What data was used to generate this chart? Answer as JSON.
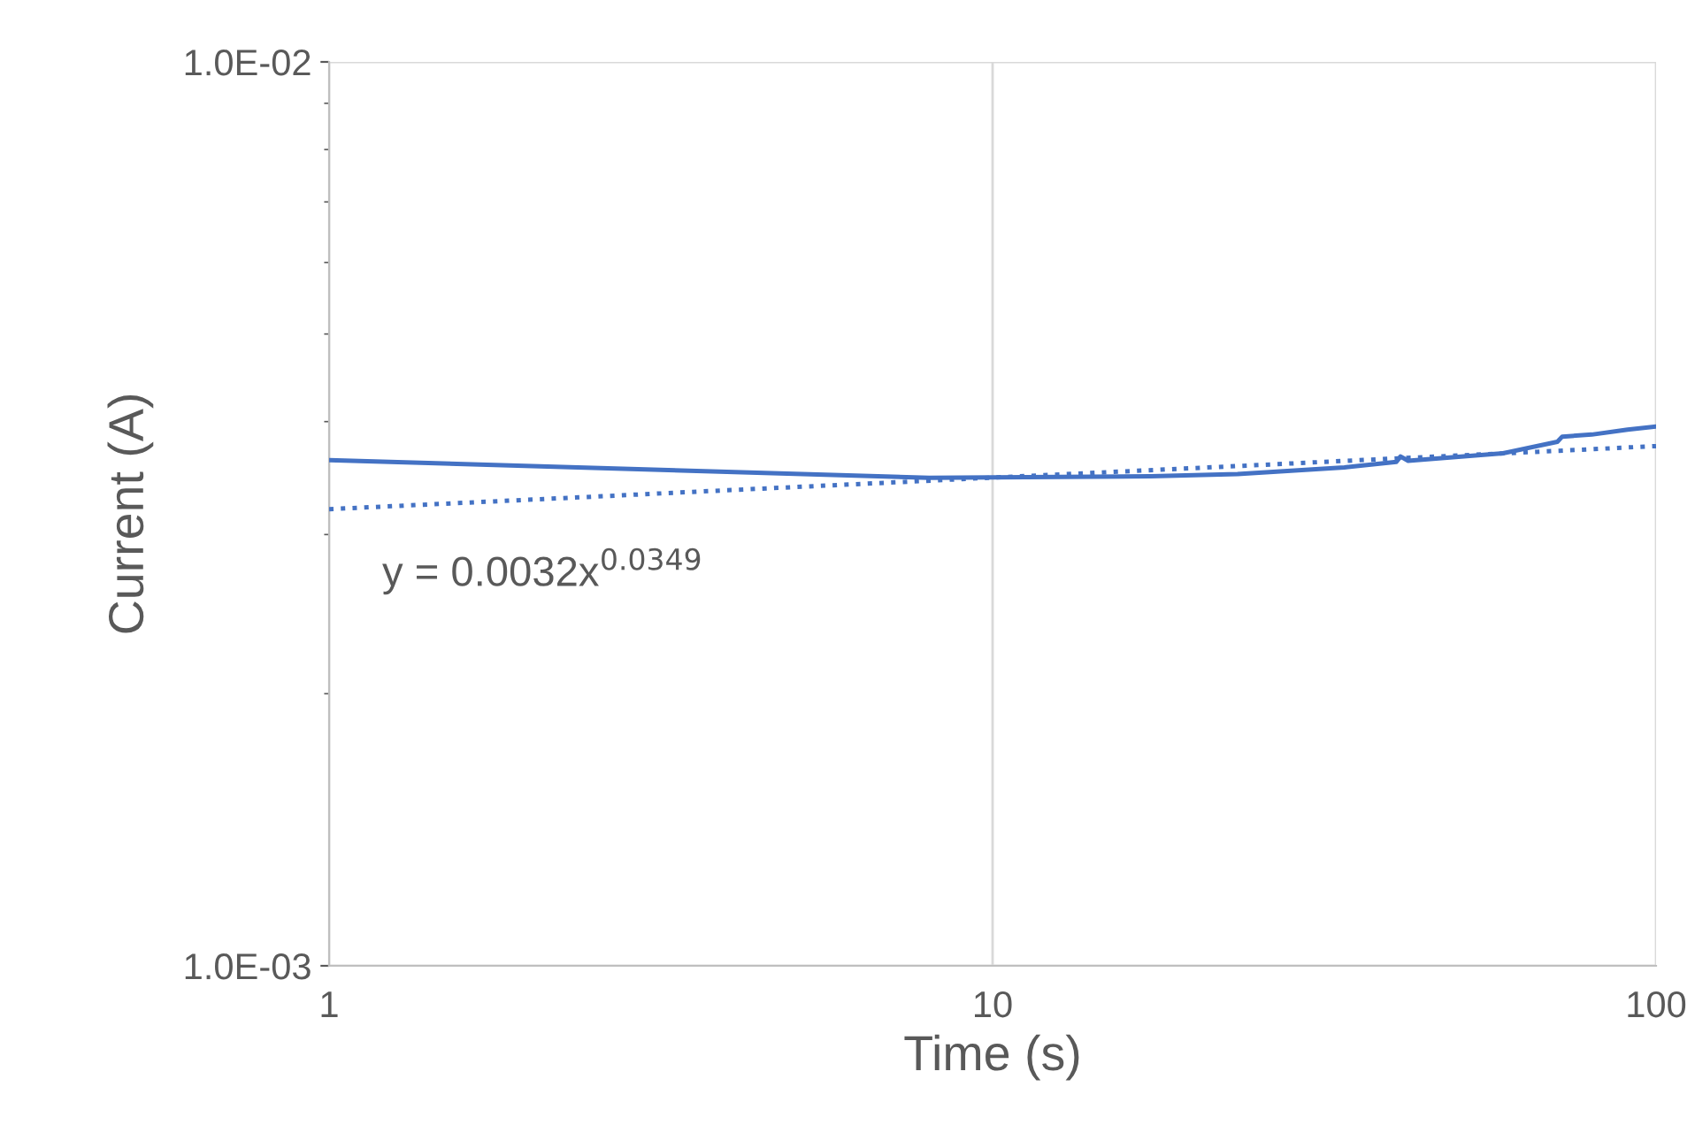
{
  "chart_data": {
    "type": "line",
    "xlabel": "Time (s)",
    "ylabel": "Current (A)",
    "log": "xy",
    "xlim": [
      1,
      100
    ],
    "ylim": [
      0.001,
      0.01
    ],
    "xticks": [
      1,
      10,
      100
    ],
    "yticks": [
      {
        "value": 0.001,
        "label": "1.0E-03"
      },
      {
        "value": 0.01,
        "label": "1.0E-02"
      }
    ],
    "grid": true,
    "legend": false,
    "series": [
      {
        "color": "#4472c4",
        "line_style": "solid",
        "x": [
          1,
          8.02,
          10,
          17.3,
          23.4,
          33.9,
          40.6,
          41.2,
          42.3,
          58.8,
          71,
          72.2,
          80,
          90.6,
          100
        ],
        "values": [
          0.003627,
          0.003466,
          0.00347,
          0.00348,
          0.0035,
          0.00356,
          0.00361,
          0.00366,
          0.00362,
          0.00369,
          0.0038,
          0.00385,
          0.00387,
          0.00392,
          0.00395
        ]
      },
      {
        "color": "#4472c4",
        "line_style": "dotted",
        "x": [
          1,
          100
        ],
        "values": [
          0.0032,
          0.003758
        ]
      }
    ],
    "annotations": [
      "y = 0.0032x$^{0.0349}$"
    ]
  }
}
